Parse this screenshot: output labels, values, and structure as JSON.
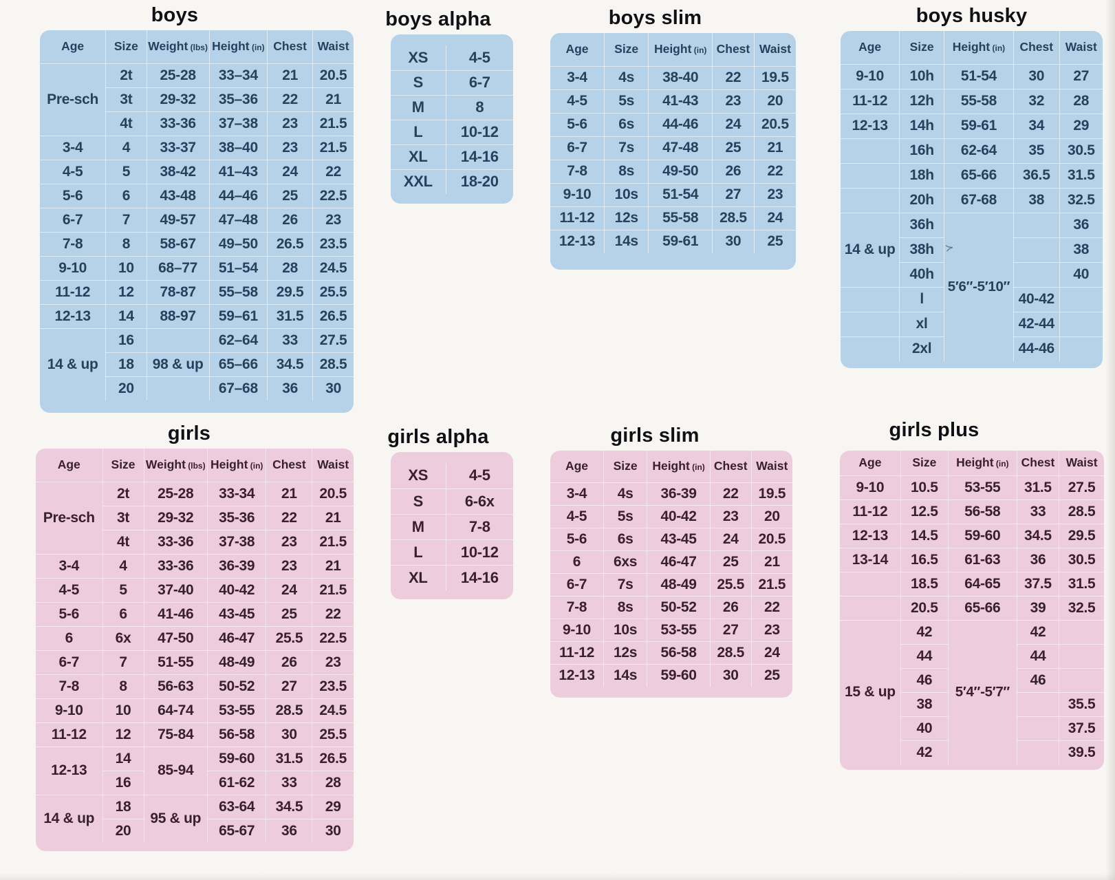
{
  "colors": {
    "page_bg": "#f8f6f2",
    "blue_bg": "#b5d2e8",
    "pink_bg": "#ecccdd",
    "blue_text": "#27405e",
    "pink_text": "#39202f",
    "title_text": "#101016",
    "grid_line": "#ffffff8c"
  },
  "tables": [
    {
      "id": "boys",
      "title": "boys",
      "theme": "blue",
      "columns": [
        {
          "label": "Age"
        },
        {
          "label": "Size"
        },
        {
          "label": "Weight",
          "unit": "(lbs)"
        },
        {
          "label": "Height",
          "unit": "(in)"
        },
        {
          "label": "Chest"
        },
        {
          "label": "Waist"
        }
      ],
      "rows": [
        [
          {
            "t": "Pre-sch",
            "rs": 3
          },
          "2t",
          "25-28",
          "33–34",
          "21",
          "20.5"
        ],
        [
          null,
          "3t",
          "29-32",
          "35–36",
          "22",
          "21"
        ],
        [
          null,
          "4t",
          "33-36",
          "37–38",
          "23",
          "21.5"
        ],
        [
          "3-4",
          "4",
          "33-37",
          "38–40",
          "23",
          "21.5"
        ],
        [
          "4-5",
          "5",
          "38-42",
          "41–43",
          "24",
          "22"
        ],
        [
          "5-6",
          "6",
          "43-48",
          "44–46",
          "25",
          "22.5"
        ],
        [
          "6-7",
          "7",
          "49-57",
          "47–48",
          "26",
          "23"
        ],
        [
          "7-8",
          "8",
          "58-67",
          "49–50",
          "26.5",
          "23.5"
        ],
        [
          "9-10",
          "10",
          "68–77",
          "51–54",
          "28",
          "24.5"
        ],
        [
          "11-12",
          "12",
          "78-87",
          "55–58",
          "29.5",
          "25.5"
        ],
        [
          "12-13",
          "14",
          "88-97",
          "59–61",
          "31.5",
          "26.5"
        ],
        [
          {
            "t": "14 & up",
            "rs": 3
          },
          "16",
          "",
          "62–64",
          "33",
          "27.5"
        ],
        [
          null,
          "18",
          "98 & up",
          "65–66",
          "34.5",
          "28.5"
        ],
        [
          null,
          "20",
          "",
          "67–68",
          "36",
          "30"
        ]
      ]
    },
    {
      "id": "boys-alpha",
      "title": "boys alpha",
      "theme": "blue",
      "columns": null,
      "rows": [
        [
          "XS",
          "4-5"
        ],
        [
          "S",
          "6-7"
        ],
        [
          "M",
          "8"
        ],
        [
          "L",
          "10-12"
        ],
        [
          "XL",
          "14-16"
        ],
        [
          "XXL",
          "18-20"
        ]
      ]
    },
    {
      "id": "boys-slim",
      "title": "boys slim",
      "theme": "blue",
      "columns": [
        {
          "label": "Age"
        },
        {
          "label": "Size"
        },
        {
          "label": "Height",
          "unit": "(in)"
        },
        {
          "label": "Chest"
        },
        {
          "label": "Waist"
        }
      ],
      "rows": [
        [
          "3-4",
          "4s",
          "38-40",
          "22",
          "19.5"
        ],
        [
          "4-5",
          "5s",
          "41-43",
          "23",
          "20"
        ],
        [
          "5-6",
          "6s",
          "44-46",
          "24",
          "20.5"
        ],
        [
          "6-7",
          "7s",
          "47-48",
          "25",
          "21"
        ],
        [
          "7-8",
          "8s",
          "49-50",
          "26",
          "22"
        ],
        [
          "9-10",
          "10s",
          "51-54",
          "27",
          "23"
        ],
        [
          "11-12",
          "12s",
          "55-58",
          "28.5",
          "24"
        ],
        [
          "12-13",
          "14s",
          "59-61",
          "30",
          "25"
        ]
      ]
    },
    {
      "id": "boys-husky",
      "title": "boys husky",
      "theme": "blue",
      "artifact": "≻",
      "columns": [
        {
          "label": "Age"
        },
        {
          "label": "Size"
        },
        {
          "label": "Height",
          "unit": "(in)"
        },
        {
          "label": "Chest"
        },
        {
          "label": "Waist"
        }
      ],
      "rows": [
        [
          "9-10",
          "10h",
          "51-54",
          "30",
          "27"
        ],
        [
          "11-12",
          "12h",
          "55-58",
          "32",
          "28"
        ],
        [
          "12-13",
          "14h",
          "59-61",
          "34",
          "29"
        ],
        [
          "",
          "16h",
          "62-64",
          "35",
          "30.5"
        ],
        [
          "",
          "18h",
          "65-66",
          "36.5",
          "31.5"
        ],
        [
          "",
          "20h",
          "67-68",
          "38",
          "32.5"
        ],
        [
          {
            "t": "14 & up",
            "rs": 3
          },
          "36h",
          {
            "t": "5′6″-5′10″",
            "rs": 6,
            "cls": "vspan"
          },
          "",
          "36"
        ],
        [
          null,
          "38h",
          null,
          "",
          "38"
        ],
        [
          null,
          "40h",
          null,
          "",
          "40"
        ],
        [
          "",
          "l",
          null,
          "40-42",
          ""
        ],
        [
          "",
          "xl",
          null,
          "42-44",
          ""
        ],
        [
          "",
          "2xl",
          null,
          "44-46",
          ""
        ]
      ]
    },
    {
      "id": "girls",
      "title": "girls",
      "theme": "pink",
      "columns": [
        {
          "label": "Age"
        },
        {
          "label": "Size"
        },
        {
          "label": "Weight",
          "unit": "(lbs)"
        },
        {
          "label": "Height",
          "unit": "(in)"
        },
        {
          "label": "Chest"
        },
        {
          "label": "Waist"
        }
      ],
      "rows": [
        [
          {
            "t": "Pre-sch",
            "rs": 3
          },
          "2t",
          "25-28",
          "33-34",
          "21",
          "20.5"
        ],
        [
          null,
          "3t",
          "29-32",
          "35-36",
          "22",
          "21"
        ],
        [
          null,
          "4t",
          "33-36",
          "37-38",
          "23",
          "21.5"
        ],
        [
          "3-4",
          "4",
          "33-36",
          "36-39",
          "23",
          "21"
        ],
        [
          "4-5",
          "5",
          "37-40",
          "40-42",
          "24",
          "21.5"
        ],
        [
          "5-6",
          "6",
          "41-46",
          "43-45",
          "25",
          "22"
        ],
        [
          "6",
          "6x",
          "47-50",
          "46-47",
          "25.5",
          "22.5"
        ],
        [
          "6-7",
          "7",
          "51-55",
          "48-49",
          "26",
          "23"
        ],
        [
          "7-8",
          "8",
          "56-63",
          "50-52",
          "27",
          "23.5"
        ],
        [
          "9-10",
          "10",
          "64-74",
          "53-55",
          "28.5",
          "24.5"
        ],
        [
          "11-12",
          "12",
          "75-84",
          "56-58",
          "30",
          "25.5"
        ],
        [
          {
            "t": "12-13",
            "rs": 2
          },
          "14",
          {
            "t": "85-94",
            "rs": 2
          },
          "59-60",
          "31.5",
          "26.5"
        ],
        [
          null,
          "16",
          null,
          "61-62",
          "33",
          "28"
        ],
        [
          {
            "t": "14 & up",
            "rs": 2
          },
          "18",
          {
            "t": "95 & up",
            "rs": 2
          },
          "63-64",
          "34.5",
          "29"
        ],
        [
          null,
          "20",
          null,
          "65-67",
          "36",
          "30"
        ]
      ]
    },
    {
      "id": "girls-alpha",
      "title": "girls alpha",
      "theme": "pink",
      "columns": null,
      "rows": [
        [
          "XS",
          "4-5"
        ],
        [
          "S",
          "6-6x"
        ],
        [
          "M",
          "7-8"
        ],
        [
          "L",
          "10-12"
        ],
        [
          "XL",
          "14-16"
        ]
      ]
    },
    {
      "id": "girls-slim",
      "title": "girls slim",
      "theme": "pink",
      "columns": [
        {
          "label": "Age"
        },
        {
          "label": "Size"
        },
        {
          "label": "Height",
          "unit": "(in)"
        },
        {
          "label": "Chest"
        },
        {
          "label": "Waist"
        }
      ],
      "rows": [
        [
          "3-4",
          "4s",
          "36-39",
          "22",
          "19.5"
        ],
        [
          "4-5",
          "5s",
          "40-42",
          "23",
          "20"
        ],
        [
          "5-6",
          "6s",
          "43-45",
          "24",
          "20.5"
        ],
        [
          "6",
          "6xs",
          "46-47",
          "25",
          "21"
        ],
        [
          "6-7",
          "7s",
          "48-49",
          "25.5",
          "21.5"
        ],
        [
          "7-8",
          "8s",
          "50-52",
          "26",
          "22"
        ],
        [
          "9-10",
          "10s",
          "53-55",
          "27",
          "23"
        ],
        [
          "11-12",
          "12s",
          "56-58",
          "28.5",
          "24"
        ],
        [
          "12-13",
          "14s",
          "59-60",
          "30",
          "25"
        ]
      ]
    },
    {
      "id": "girls-plus",
      "title": "girls plus",
      "theme": "pink",
      "columns": [
        {
          "label": "Age"
        },
        {
          "label": "Size"
        },
        {
          "label": "Height",
          "unit": "(in)"
        },
        {
          "label": "Chest"
        },
        {
          "label": "Waist"
        }
      ],
      "rows": [
        [
          "9-10",
          "10.5",
          "53-55",
          "31.5",
          "27.5"
        ],
        [
          "11-12",
          "12.5",
          "56-58",
          "33",
          "28.5"
        ],
        [
          "12-13",
          "14.5",
          "59-60",
          "34.5",
          "29.5"
        ],
        [
          "13-14",
          "16.5",
          "61-63",
          "36",
          "30.5"
        ],
        [
          "",
          "18.5",
          "64-65",
          "37.5",
          "31.5"
        ],
        [
          "",
          "20.5",
          "65-66",
          "39",
          "32.5"
        ],
        [
          {
            "t": "15 & up",
            "rs": 6
          },
          "42",
          {
            "t": "5′4″-5′7″",
            "rs": 6,
            "cls": "vspan"
          },
          "42",
          ""
        ],
        [
          null,
          "44",
          null,
          "44",
          ""
        ],
        [
          null,
          "46",
          null,
          "46",
          ""
        ],
        [
          null,
          "38",
          null,
          "",
          "35.5"
        ],
        [
          null,
          "40",
          null,
          "",
          "37.5"
        ],
        [
          null,
          "42",
          null,
          "",
          "39.5"
        ]
      ]
    }
  ]
}
